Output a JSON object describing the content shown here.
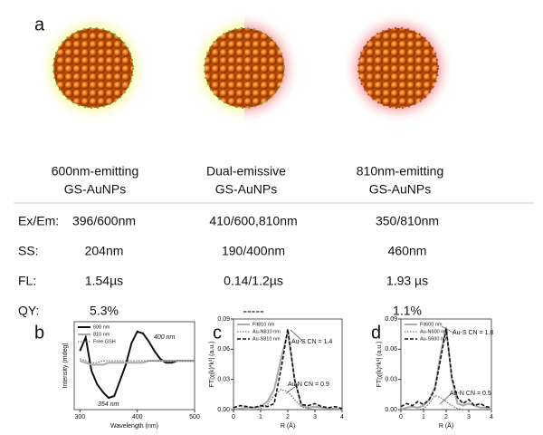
{
  "panel_labels": [
    "a",
    "b",
    "c",
    "d"
  ],
  "particles": [
    {
      "line1": "600nm-emitting",
      "line2": "GS-AuNPs"
    },
    {
      "line1": "Dual-emissive",
      "line2": "GS-AuNPs"
    },
    {
      "line1": "810nm-emitting",
      "line2": "GS-AuNPs"
    }
  ],
  "table": {
    "rows": [
      [
        "Ex/Em:",
        "396/600nm",
        "410/600,810nm",
        "350/810nm"
      ],
      [
        "SS:",
        "204nm",
        "190/400nm",
        "460nm"
      ],
      [
        "FL:",
        "1.54µs",
        "0.14/1.2µs",
        "1.93 µs"
      ],
      [
        "QY:",
        "5.3%",
        "-----",
        "1.1%"
      ]
    ]
  },
  "chart_data": [
    {
      "type": "line",
      "x_label": "Wavelength (nm)",
      "y_label": "Intensity (mdeg)",
      "x": [
        300,
        310,
        320,
        330,
        340,
        350,
        360,
        370,
        380,
        390,
        400,
        410,
        420,
        430,
        440,
        450,
        460,
        470,
        480,
        490,
        500
      ],
      "xlim": [
        290,
        500
      ],
      "xticks": [
        300,
        400,
        500
      ],
      "ylim": [
        -25,
        20
      ],
      "legend": "upper left",
      "series": [
        {
          "name": "600 nm",
          "color": "#111111",
          "style": "thick",
          "values": [
            5,
            12,
            -5,
            -12,
            -16,
            -19,
            -18,
            -10,
            -2,
            9,
            15,
            14,
            10,
            5,
            1,
            -1,
            -1,
            0,
            0,
            0,
            0
          ]
        },
        {
          "name": "810 nm",
          "color": "#aaaaaa",
          "style": "thick",
          "values": [
            0,
            -1,
            -2,
            -2,
            -2,
            -1,
            -1,
            -1,
            -1,
            -1,
            -1,
            -1,
            0,
            0,
            0,
            0,
            0,
            0,
            0,
            0,
            0
          ]
        },
        {
          "name": "Free GSH",
          "color": "#555555",
          "style": "dotted",
          "values": [
            1,
            0,
            -1,
            -1,
            0,
            0,
            0,
            0,
            0,
            0,
            0,
            0,
            0,
            0,
            0,
            0,
            0,
            0,
            0,
            0,
            0
          ]
        }
      ],
      "annotations": [
        "400 nm",
        "354 nm"
      ]
    },
    {
      "type": "line",
      "x_label": "R (Å)",
      "y_label": "FT|χ(k)*k³| (a.u.)",
      "x": [
        0,
        0.25,
        0.5,
        0.75,
        1,
        1.25,
        1.5,
        1.75,
        2,
        2.25,
        2.5,
        2.75,
        3,
        3.25,
        3.5,
        3.75,
        4
      ],
      "xlim": [
        0,
        4
      ],
      "xticks": [
        0,
        1,
        2,
        3,
        4
      ],
      "ylim": [
        0,
        0.09
      ],
      "yticks": [
        {
          "value": 0,
          "label": "0.00"
        },
        {
          "value": 0.03,
          "label": "0.03"
        },
        {
          "value": 0.06,
          "label": "0.06"
        },
        {
          "value": 0.09,
          "label": "0.09"
        }
      ],
      "legend": "upper left",
      "series": [
        {
          "name": "Fit810 nm",
          "color": "#aaaaaa",
          "style": "thick",
          "values": [
            0,
            0.001,
            0.002,
            0.002,
            0.003,
            0.008,
            0.02,
            0.05,
            0.078,
            0.03,
            0.004,
            0.002,
            0.003,
            0.002,
            0.001,
            0.001,
            0
          ]
        },
        {
          "name": "Au-N810 nm",
          "color": "#555555",
          "style": "dotted",
          "values": [
            0,
            0,
            0,
            0,
            0.001,
            0.005,
            0.014,
            0.02,
            0.018,
            0.01,
            0.003,
            0.001,
            0,
            0,
            0,
            0,
            0
          ]
        },
        {
          "name": "Au-S810 nm",
          "color": "#111111",
          "style": "dashed",
          "values": [
            0.002,
            0.004,
            0.003,
            0.002,
            0.004,
            0.003,
            0.006,
            0.04,
            0.08,
            0.03,
            0.005,
            0.004,
            0.006,
            0.003,
            0.002,
            0.003,
            0.001
          ]
        }
      ],
      "annotations": [
        "Au-S CN = 1.4",
        "Au-N CN = 0.9"
      ]
    },
    {
      "type": "line",
      "x_label": "R (Å)",
      "y_label": "FT|χ(k)*k³| (a.u.)",
      "x": [
        0,
        0.25,
        0.5,
        0.75,
        1,
        1.25,
        1.5,
        1.75,
        2,
        2.25,
        2.5,
        2.75,
        3,
        3.25,
        3.5,
        3.75,
        4
      ],
      "xlim": [
        0,
        4
      ],
      "xticks": [
        0,
        1,
        2,
        3,
        4
      ],
      "ylim": [
        0,
        0.09
      ],
      "yticks": [
        {
          "value": 0,
          "label": "0.00"
        },
        {
          "value": 0.03,
          "label": "0.03"
        },
        {
          "value": 0.06,
          "label": "0.06"
        },
        {
          "value": 0.09,
          "label": "0.09"
        }
      ],
      "legend": "upper left",
      "series": [
        {
          "name": "Fit600 nm",
          "color": "#aaaaaa",
          "style": "thick",
          "values": [
            0,
            0.002,
            0.003,
            0.002,
            0.004,
            0.01,
            0.022,
            0.055,
            0.082,
            0.03,
            0.006,
            0.004,
            0.006,
            0.004,
            0.002,
            0.002,
            0
          ]
        },
        {
          "name": "Au-N600 nm",
          "color": "#555555",
          "style": "dotted",
          "values": [
            0,
            0,
            0,
            0,
            0.001,
            0.006,
            0.014,
            0.012,
            0.008,
            0.004,
            0.001,
            0,
            0,
            0,
            0,
            0,
            0
          ]
        },
        {
          "name": "Au-S600 nm",
          "color": "#111111",
          "style": "dashed",
          "values": [
            0.003,
            0.006,
            0.004,
            0.008,
            0.005,
            0.01,
            0.02,
            0.05,
            0.08,
            0.032,
            0.012,
            0.006,
            0.01,
            0.004,
            0.006,
            0.003,
            0.002
          ]
        }
      ],
      "annotations": [
        "Au-S CN = 1.8",
        "Au-N CN = 0.5"
      ]
    }
  ]
}
